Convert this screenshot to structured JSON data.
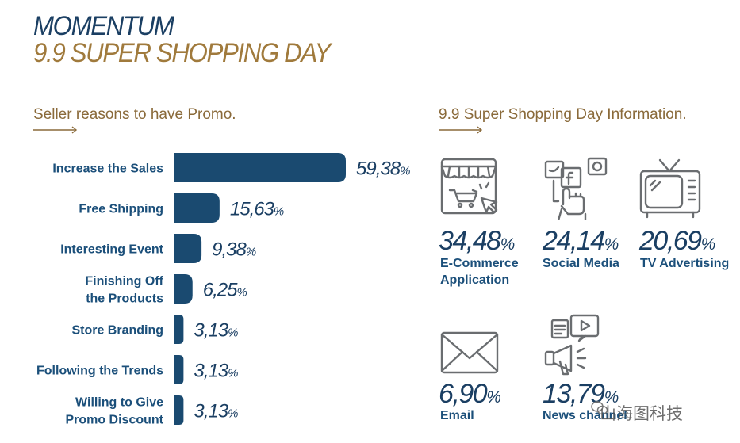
{
  "header": {
    "title_line1": "MOMENTUM",
    "title_line2": "9.9 SUPER SHOPPING DAY"
  },
  "left_section": {
    "label": "Seller reasons to have Promo."
  },
  "right_section": {
    "label": "9.9 Super Shopping Day Information."
  },
  "colors": {
    "bar": "#1a4a70",
    "title_blue": "#1b3f63",
    "title_gold": "#a07a3c",
    "label_blue": "#1b4f7a",
    "icon_gray": "#6a6d70"
  },
  "chart_data": {
    "type": "bar",
    "orientation": "horizontal",
    "categories": [
      [
        "Increase the Sales"
      ],
      [
        "Free Shipping"
      ],
      [
        "Interesting Event"
      ],
      [
        "Finishing Off",
        "the Products"
      ],
      [
        "Store Branding"
      ],
      [
        "Following the Trends"
      ],
      [
        "Willing to Give",
        "Promo Discount"
      ]
    ],
    "values": [
      59.38,
      15.63,
      9.38,
      6.25,
      3.13,
      3.13,
      3.13
    ],
    "value_labels": [
      "59,38",
      "15,63",
      "9,38",
      "6,25",
      "3,13",
      "3,13",
      "3,13"
    ],
    "unit": "%",
    "xlim": [
      0,
      59.38
    ]
  },
  "info_items": [
    {
      "icon": "shop-icon",
      "value": "34,48",
      "pct": "%",
      "label_lines": [
        "E-Commerce",
        "Application"
      ]
    },
    {
      "icon": "social-media-icon",
      "value": "24,14",
      "pct": "%",
      "label_lines": [
        "Social Media"
      ]
    },
    {
      "icon": "tv-icon",
      "value": "20,69",
      "pct": "%",
      "label_lines": [
        "TV Advertising"
      ]
    },
    {
      "icon": "envelope-icon",
      "value": "6,90",
      "pct": "%",
      "label_lines": [
        "Email"
      ]
    },
    {
      "icon": "megaphone-icon",
      "value": "13,79",
      "pct": "%",
      "label_lines": [
        "News channel"
      ]
    }
  ],
  "watermark": {
    "text": "山海图科技"
  }
}
